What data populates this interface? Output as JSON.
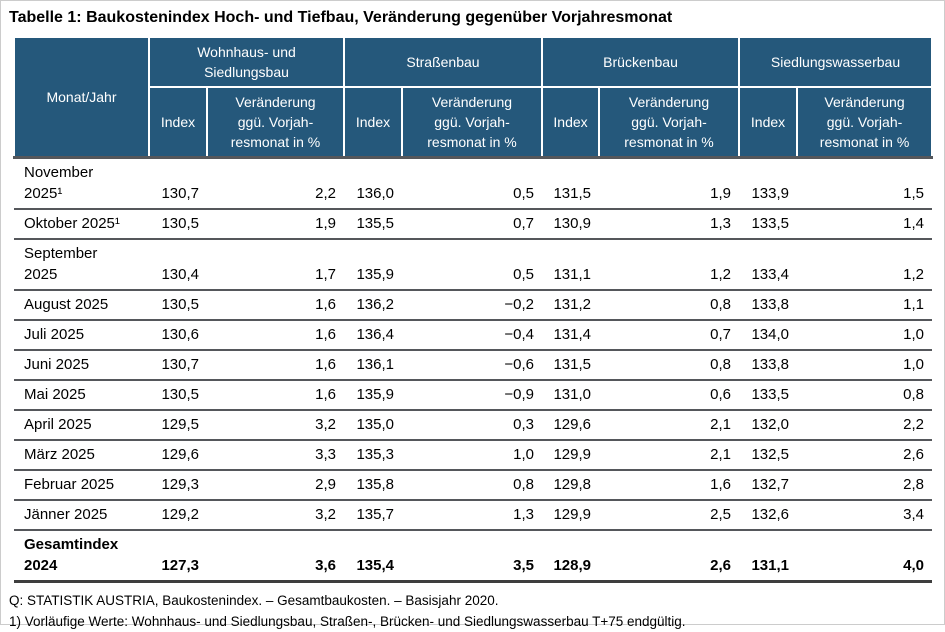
{
  "title": "Tabelle 1: Baukostenindex Hoch- und Tiefbau, Veränderung gegenüber Vorjahresmonat",
  "table": {
    "corner_header": "Monat/Jahr",
    "groups": [
      {
        "label": "Wohnhaus- und\nSiedlungsbau"
      },
      {
        "label": "Straßenbau"
      },
      {
        "label": "Brückenbau"
      },
      {
        "label": "Siedlungswasserbau"
      }
    ],
    "sub_headers": {
      "index": "Index",
      "change": "Veränderung\nggü. Vorjah-\nresmonat in %"
    },
    "rows": [
      {
        "month": "November\n2025¹",
        "bold": false,
        "values": [
          "130,7",
          "2,2",
          "136,0",
          "0,5",
          "131,5",
          "1,9",
          "133,9",
          "1,5"
        ]
      },
      {
        "month": "Oktober 2025¹",
        "bold": false,
        "values": [
          "130,5",
          "1,9",
          "135,5",
          "0,7",
          "130,9",
          "1,3",
          "133,5",
          "1,4"
        ]
      },
      {
        "month": "September\n2025",
        "bold": false,
        "values": [
          "130,4",
          "1,7",
          "135,9",
          "0,5",
          "131,1",
          "1,2",
          "133,4",
          "1,2"
        ]
      },
      {
        "month": "August 2025",
        "bold": false,
        "values": [
          "130,5",
          "1,6",
          "136,2",
          "−0,2",
          "131,2",
          "0,8",
          "133,8",
          "1,1"
        ]
      },
      {
        "month": "Juli 2025",
        "bold": false,
        "values": [
          "130,6",
          "1,6",
          "136,4",
          "−0,4",
          "131,4",
          "0,7",
          "134,0",
          "1,0"
        ]
      },
      {
        "month": "Juni 2025",
        "bold": false,
        "values": [
          "130,7",
          "1,6",
          "136,1",
          "−0,6",
          "131,5",
          "0,8",
          "133,8",
          "1,0"
        ]
      },
      {
        "month": "Mai 2025",
        "bold": false,
        "values": [
          "130,5",
          "1,6",
          "135,9",
          "−0,9",
          "131,0",
          "0,6",
          "133,5",
          "0,8"
        ]
      },
      {
        "month": "April 2025",
        "bold": false,
        "values": [
          "129,5",
          "3,2",
          "135,0",
          "0,3",
          "129,6",
          "2,1",
          "132,0",
          "2,2"
        ]
      },
      {
        "month": "März 2025",
        "bold": false,
        "values": [
          "129,6",
          "3,3",
          "135,3",
          "1,0",
          "129,9",
          "2,1",
          "132,5",
          "2,6"
        ]
      },
      {
        "month": "Februar 2025",
        "bold": false,
        "values": [
          "129,3",
          "2,9",
          "135,8",
          "0,8",
          "129,8",
          "1,6",
          "132,7",
          "2,8"
        ]
      },
      {
        "month": "Jänner 2025",
        "bold": false,
        "values": [
          "129,2",
          "3,2",
          "135,7",
          "1,3",
          "129,9",
          "2,5",
          "132,6",
          "3,4"
        ]
      },
      {
        "month": "Gesamtindex\n2024",
        "bold": true,
        "values": [
          "127,3",
          "3,6",
          "135,4",
          "3,5",
          "128,9",
          "2,6",
          "131,1",
          "4,0"
        ]
      }
    ]
  },
  "footer": {
    "source": "Q: STATISTIK AUSTRIA, Baukostenindex. – Gesamtbaukosten. – Basisjahr 2020.",
    "footnote": "1) Vorläufige Werte: Wohnhaus- und Siedlungsbau, Straßen-, Brücken- und Siedlungswasserbau T+75 endgültig."
  },
  "colors": {
    "header_bg": "#25587B",
    "header_text": "#ffffff",
    "row_border": "#55575B",
    "table_bottom_border": "#3E3E3E",
    "body_text": "#000000"
  }
}
